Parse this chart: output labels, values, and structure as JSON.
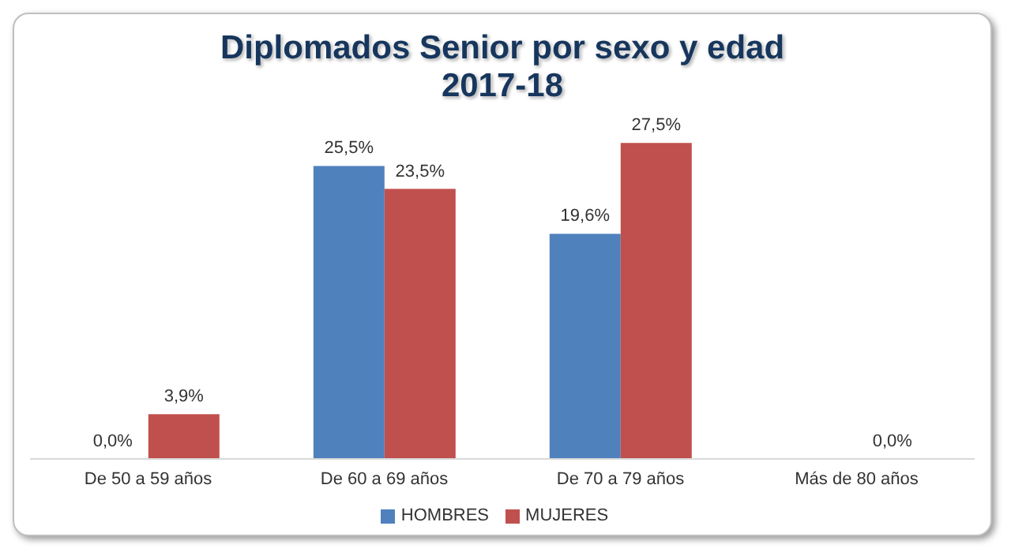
{
  "chart_data": {
    "type": "bar",
    "title": "Diplomados Senior por sexo y edad",
    "subtitle": "2017-18",
    "categories": [
      "De 50 a 59 años",
      "De 60 a 69 años",
      "De 70 a 79 años",
      "Más de 80 años"
    ],
    "series": [
      {
        "name": "HOMBRES",
        "color": "#4f81bd",
        "values": [
          0.0,
          25.5,
          19.6,
          null
        ],
        "value_labels": [
          "0,0%",
          "25,5%",
          "19,6%",
          null
        ]
      },
      {
        "name": "MUJERES",
        "color": "#c0504d",
        "values": [
          3.9,
          23.5,
          27.5,
          0.0
        ],
        "value_labels": [
          "3,9%",
          "23,5%",
          "27,5%",
          "0,0%"
        ]
      }
    ],
    "legend": "bottom",
    "grid": false
  }
}
